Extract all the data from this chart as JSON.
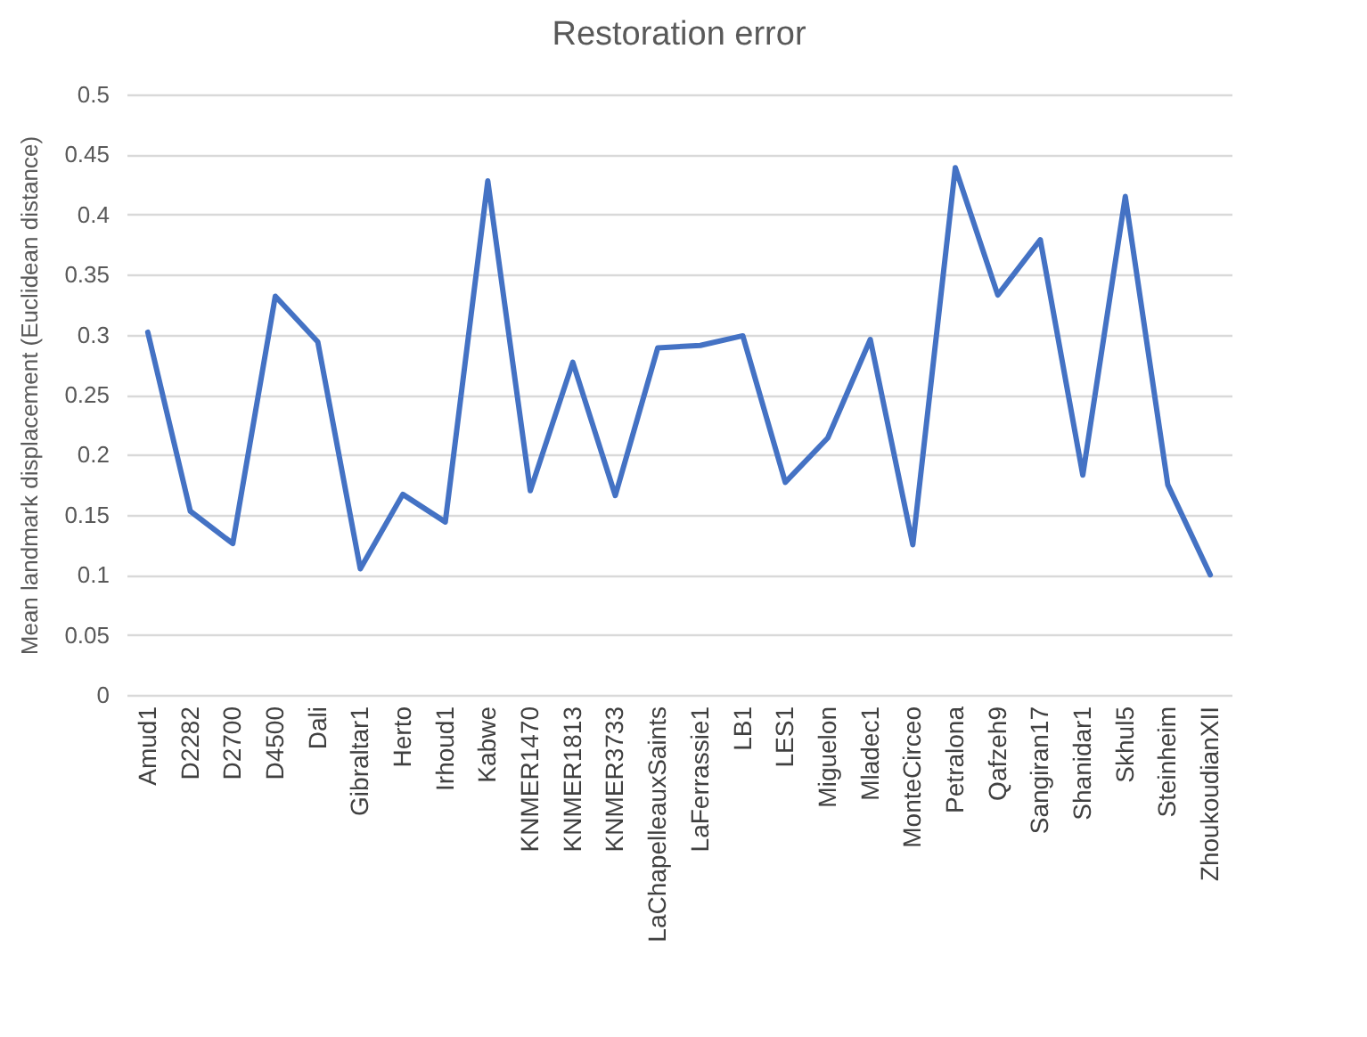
{
  "chart_data": {
    "type": "line",
    "title": "Restoration error",
    "ylabel": "Mean landmark displacement (Euclidean distance)",
    "categories": [
      "Amud1",
      "D2282",
      "D2700",
      "D4500",
      "Dali",
      "Gibraltar1",
      "Herto",
      "Irhoud1",
      "Kabwe",
      "KNMER1470",
      "KNMER1813",
      "KNMER3733",
      "LaChapelleauxSaints",
      "LaFerrassie1",
      "LB1",
      "LES1",
      "Miguelon",
      "Mladec1",
      "MonteCirceo",
      "Petralona",
      "Qafzeh9",
      "Sangiran17",
      "Shanidar1",
      "Skhul5",
      "Steinheim",
      "ZhoukoudianXII"
    ],
    "series": [
      {
        "color": "#4472c4",
        "values": [
          0.302,
          0.153,
          0.126,
          0.332,
          0.294,
          0.105,
          0.167,
          0.144,
          0.428,
          0.17,
          0.277,
          0.166,
          0.289,
          0.291,
          0.299,
          0.177,
          0.214,
          0.296,
          0.125,
          0.439,
          0.333,
          0.379,
          0.183,
          0.415,
          0.175,
          0.1
        ]
      }
    ],
    "ylim": [
      0,
      0.5
    ],
    "yticks": [
      0,
      0.05,
      0.1,
      0.15,
      0.2,
      0.25,
      0.3,
      0.35,
      0.4,
      0.45,
      0.5
    ],
    "grid": "y",
    "legend": false
  }
}
